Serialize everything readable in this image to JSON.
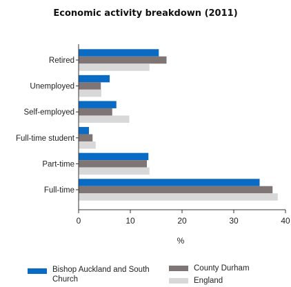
{
  "chart_data": {
    "type": "bar",
    "orientation": "horizontal",
    "title": "Economic activity breakdown (2011)",
    "xlabel": "%",
    "ylabel": "",
    "xlim": [
      0,
      40
    ],
    "xticks": [
      0,
      10,
      20,
      30,
      40
    ],
    "grid": false,
    "legend_position": "bottom",
    "categories": [
      "Retired",
      "Unemployed",
      "Self-employed",
      "Full-time student",
      "Part-time",
      "Full-time"
    ],
    "series": [
      {
        "name": "Bishop Auckland and South Church",
        "color": "#0a6bc4",
        "values": [
          15.5,
          6.0,
          7.3,
          2.0,
          13.5,
          35.0
        ]
      },
      {
        "name": "County Durham",
        "color": "#807575",
        "values": [
          17.0,
          4.3,
          6.5,
          2.7,
          13.2,
          37.5
        ]
      },
      {
        "name": "England",
        "color": "#d8d8d8",
        "values": [
          13.7,
          4.4,
          9.8,
          3.3,
          13.7,
          38.5
        ]
      }
    ]
  }
}
